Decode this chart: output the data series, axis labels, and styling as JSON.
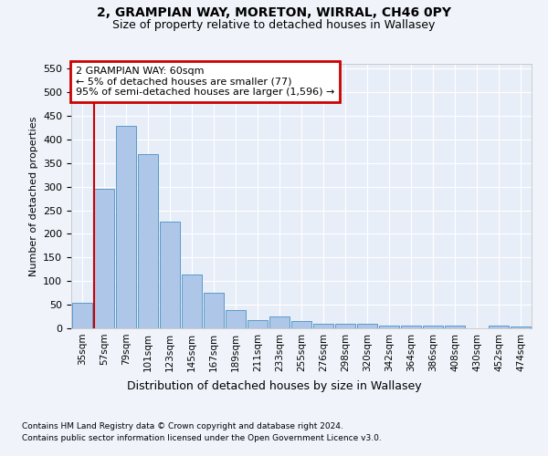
{
  "title1": "2, GRAMPIAN WAY, MORETON, WIRRAL, CH46 0PY",
  "title2": "Size of property relative to detached houses in Wallasey",
  "xlabel": "Distribution of detached houses by size in Wallasey",
  "ylabel": "Number of detached properties",
  "categories": [
    "35sqm",
    "57sqm",
    "79sqm",
    "101sqm",
    "123sqm",
    "145sqm",
    "167sqm",
    "189sqm",
    "211sqm",
    "233sqm",
    "255sqm",
    "276sqm",
    "298sqm",
    "320sqm",
    "342sqm",
    "364sqm",
    "386sqm",
    "408sqm",
    "430sqm",
    "452sqm",
    "474sqm"
  ],
  "values": [
    55,
    295,
    428,
    368,
    225,
    113,
    75,
    38,
    17,
    26,
    15,
    10,
    10,
    10,
    6,
    5,
    5,
    5,
    0,
    5,
    4
  ],
  "bar_color": "#aec6e8",
  "bar_edge_color": "#5a9bc9",
  "annotation_text": "2 GRAMPIAN WAY: 60sqm\n← 5% of detached houses are smaller (77)\n95% of semi-detached houses are larger (1,596) →",
  "annotation_box_color": "#ffffff",
  "annotation_box_edge": "#cc0000",
  "vline_color": "#cc0000",
  "ylim": [
    0,
    560
  ],
  "yticks": [
    0,
    50,
    100,
    150,
    200,
    250,
    300,
    350,
    400,
    450,
    500,
    550
  ],
  "footer1": "Contains HM Land Registry data © Crown copyright and database right 2024.",
  "footer2": "Contains public sector information licensed under the Open Government Licence v3.0.",
  "bg_color": "#f0f4fa",
  "plot_bg_color": "#e8eef8"
}
